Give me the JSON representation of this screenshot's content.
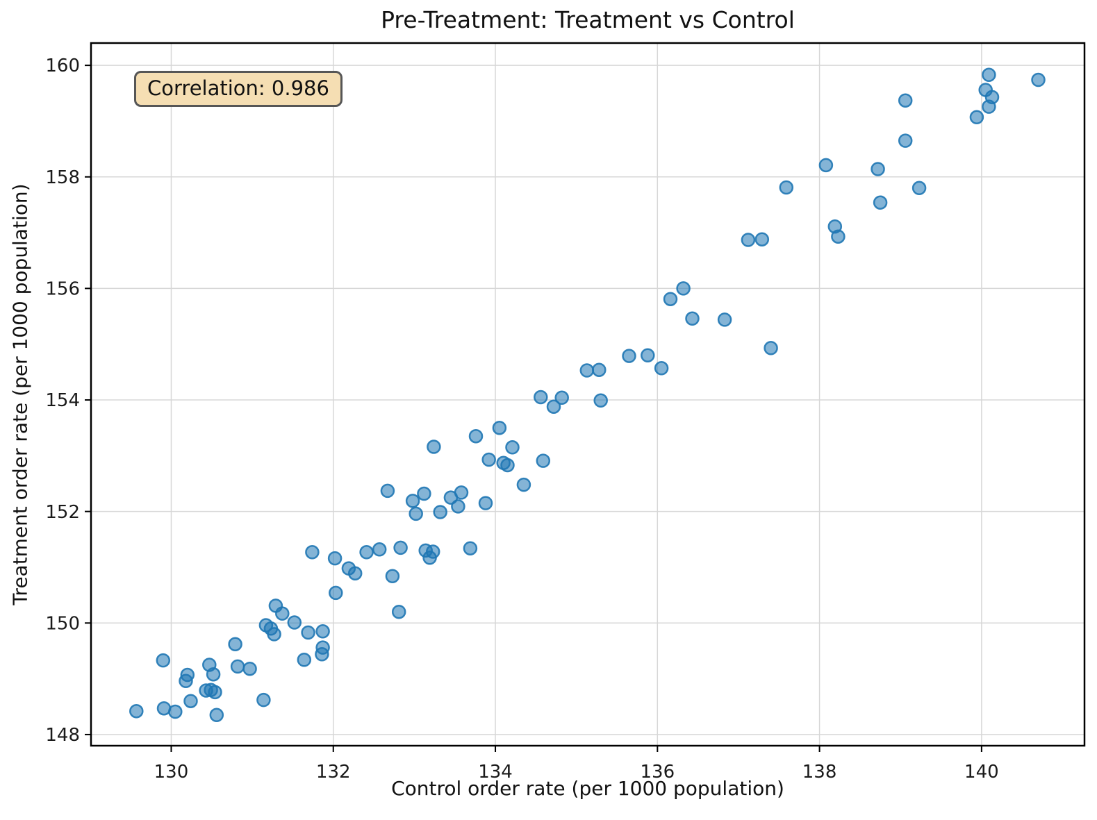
{
  "chart_data": {
    "type": "scatter",
    "title": "Pre-Treatment: Treatment vs Control",
    "xlabel": "Control order rate (per 1000 population)",
    "ylabel": "Treatment order rate (per 1000 population)",
    "annotation": {
      "label": "Correlation: 0.986",
      "bg_color": "#f5deb3",
      "border_color": "#565656"
    },
    "xlim": [
      129.01,
      141.27
    ],
    "ylim": [
      147.8,
      160.4
    ],
    "xticks": [
      130,
      132,
      134,
      136,
      138,
      140
    ],
    "yticks": [
      148,
      150,
      152,
      154,
      156,
      158,
      160
    ],
    "grid": true,
    "legend": "none",
    "marker_color": "#1f77b4",
    "marker_alpha": 0.55,
    "grid_color": "#d7d7d7",
    "spine_color": "#000000",
    "points": [
      [
        129.57,
        148.42
      ],
      [
        129.9,
        149.33
      ],
      [
        129.91,
        148.47
      ],
      [
        130.05,
        148.41
      ],
      [
        130.18,
        148.96
      ],
      [
        130.2,
        149.07
      ],
      [
        130.24,
        148.6
      ],
      [
        130.43,
        148.79
      ],
      [
        130.47,
        149.25
      ],
      [
        130.49,
        148.8
      ],
      [
        130.52,
        149.08
      ],
      [
        130.54,
        148.76
      ],
      [
        130.56,
        148.35
      ],
      [
        130.79,
        149.62
      ],
      [
        130.82,
        149.22
      ],
      [
        130.97,
        149.18
      ],
      [
        131.14,
        148.62
      ],
      [
        131.17,
        149.96
      ],
      [
        131.23,
        149.9
      ],
      [
        131.27,
        149.8
      ],
      [
        131.29,
        150.31
      ],
      [
        131.37,
        150.17
      ],
      [
        131.52,
        150.01
      ],
      [
        131.64,
        149.34
      ],
      [
        131.69,
        149.83
      ],
      [
        131.74,
        151.27
      ],
      [
        131.86,
        149.44
      ],
      [
        131.87,
        149.85
      ],
      [
        131.87,
        149.56
      ],
      [
        132.02,
        151.16
      ],
      [
        132.03,
        150.54
      ],
      [
        132.19,
        150.98
      ],
      [
        132.27,
        150.89
      ],
      [
        132.41,
        151.27
      ],
      [
        132.57,
        151.32
      ],
      [
        132.67,
        152.37
      ],
      [
        132.73,
        150.84
      ],
      [
        132.81,
        150.2
      ],
      [
        132.83,
        151.35
      ],
      [
        132.98,
        152.19
      ],
      [
        133.02,
        151.96
      ],
      [
        133.12,
        152.32
      ],
      [
        133.14,
        151.3
      ],
      [
        133.19,
        151.17
      ],
      [
        133.23,
        151.28
      ],
      [
        133.24,
        153.16
      ],
      [
        133.32,
        151.99
      ],
      [
        133.45,
        152.25
      ],
      [
        133.54,
        152.09
      ],
      [
        133.58,
        152.34
      ],
      [
        133.69,
        151.34
      ],
      [
        133.76,
        153.35
      ],
      [
        133.88,
        152.15
      ],
      [
        133.92,
        152.93
      ],
      [
        134.05,
        153.5
      ],
      [
        134.1,
        152.87
      ],
      [
        134.15,
        152.83
      ],
      [
        134.21,
        153.15
      ],
      [
        134.35,
        152.48
      ],
      [
        134.56,
        154.05
      ],
      [
        134.59,
        152.91
      ],
      [
        134.72,
        153.88
      ],
      [
        134.82,
        154.04
      ],
      [
        135.13,
        154.53
      ],
      [
        135.28,
        154.54
      ],
      [
        135.3,
        153.99
      ],
      [
        135.65,
        154.79
      ],
      [
        135.88,
        154.8
      ],
      [
        136.05,
        154.57
      ],
      [
        136.16,
        155.81
      ],
      [
        136.32,
        156.0
      ],
      [
        136.43,
        155.46
      ],
      [
        136.83,
        155.44
      ],
      [
        137.12,
        156.87
      ],
      [
        137.29,
        156.88
      ],
      [
        137.4,
        154.93
      ],
      [
        137.59,
        157.81
      ],
      [
        138.08,
        158.21
      ],
      [
        138.19,
        157.11
      ],
      [
        138.23,
        156.93
      ],
      [
        138.72,
        158.14
      ],
      [
        138.75,
        157.54
      ],
      [
        139.06,
        158.65
      ],
      [
        139.06,
        159.37
      ],
      [
        139.23,
        157.8
      ],
      [
        139.94,
        159.07
      ],
      [
        140.05,
        159.56
      ],
      [
        140.09,
        159.83
      ],
      [
        140.09,
        159.26
      ],
      [
        140.13,
        159.43
      ],
      [
        140.7,
        159.74
      ]
    ]
  }
}
